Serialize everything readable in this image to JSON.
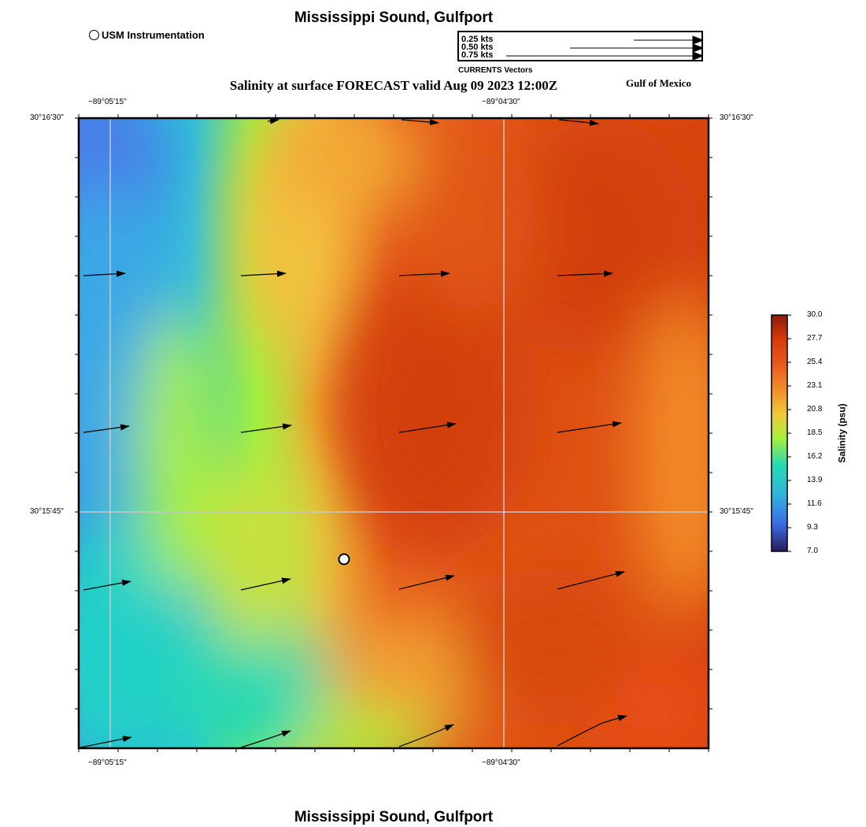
{
  "header": {
    "title": "Mississippi Sound, Gulfport",
    "subtitle": "Salinity at surface FORECAST valid Aug 09 2023 12:00Z",
    "region_label": "Gulf of Mexico",
    "footer_title": "Mississippi Sound, Gulfport"
  },
  "legend": {
    "station_label": "USM Instrumentation",
    "vector_labels": [
      "0.25 kts",
      "0.50 kts",
      "0.75 kts"
    ],
    "vector_caption": "CURRENTS Vectors"
  },
  "axes": {
    "top_lon_labels": [
      "−89°05'15\"",
      "−89°04'30\""
    ],
    "bottom_lon_labels": [
      "−89°05'15\"",
      "−89°04'30\""
    ],
    "left_lat_labels": [
      "30°16'30\"",
      "30°15'45\""
    ],
    "right_lat_labels": [
      "30°16'30\"",
      "30°15'45\""
    ]
  },
  "colorbar": {
    "title": "Salinity (psu)",
    "ticks": [
      "30.0",
      "27.7",
      "25.4",
      "23.1",
      "20.8",
      "18.5",
      "16.2",
      "13.9",
      "11.6",
      "9.3",
      "7.0"
    ],
    "range": [
      7.0,
      30.0
    ],
    "colors": [
      "#2a1a5e",
      "#3a6fe8",
      "#2fb8d8",
      "#22d9b8",
      "#a8f03a",
      "#f0c83a",
      "#f2902a",
      "#e8561a",
      "#d63a0c",
      "#8b1a08"
    ]
  },
  "map": {
    "station": {
      "name": "USM Instrumentation"
    },
    "field_colors": [
      "#4a86e8",
      "#2cbfe0",
      "#20d8c0",
      "#a4f040",
      "#f5c040",
      "#f0a030",
      "#e8581a",
      "#d4420c",
      "#f28a26"
    ]
  }
}
